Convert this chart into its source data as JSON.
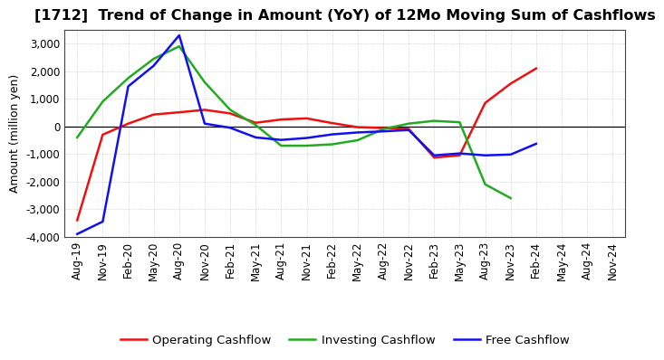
{
  "title": "[1712]  Trend of Change in Amount (YoY) of 12Mo Moving Sum of Cashflows",
  "ylabel": "Amount (million yen)",
  "xlabels": [
    "Aug-19",
    "Nov-19",
    "Feb-20",
    "May-20",
    "Aug-20",
    "Nov-20",
    "Feb-21",
    "May-21",
    "Aug-21",
    "Nov-21",
    "Feb-22",
    "May-22",
    "Aug-22",
    "Nov-22",
    "Feb-23",
    "May-23",
    "Aug-23",
    "Nov-23",
    "Feb-24",
    "May-24",
    "Aug-24",
    "Nov-24"
  ],
  "operating": [
    -3400,
    -300,
    100,
    430,
    510,
    600,
    470,
    130,
    250,
    290,
    120,
    -30,
    -60,
    -90,
    -1130,
    -1050,
    850,
    1550,
    2100,
    null,
    null,
    null
  ],
  "investing": [
    -400,
    900,
    1750,
    2450,
    2900,
    1600,
    600,
    50,
    -700,
    -700,
    -650,
    -500,
    -100,
    100,
    200,
    150,
    -2100,
    -2600,
    null,
    null,
    null,
    null
  ],
  "free": [
    -3900,
    -3450,
    1450,
    2200,
    3300,
    100,
    -50,
    -400,
    -490,
    -420,
    -290,
    -220,
    -180,
    -130,
    -1050,
    -980,
    -1050,
    -1020,
    -630,
    null,
    null,
    null
  ],
  "operating_color": "#ee1111",
  "investing_color": "#22aa22",
  "free_color": "#1111ee",
  "ylim": [
    -4000,
    3500
  ],
  "yticks": [
    -4000,
    -3000,
    -2000,
    -1000,
    0,
    1000,
    2000,
    3000
  ],
  "background_color": "#ffffff",
  "grid_color": "#bbbbbb",
  "title_fontsize": 11.5,
  "axis_fontsize": 8.5,
  "legend_fontsize": 9.5
}
